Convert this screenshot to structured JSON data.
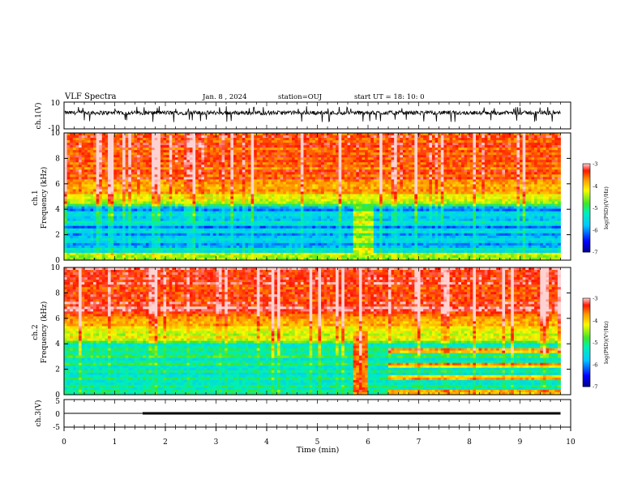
{
  "header": {
    "title": "VLF Spectra",
    "date": "Jan. 8 , 2024",
    "station": "station=OUJ",
    "start": "start  UT =  18: 10: 0"
  },
  "chart_data": [
    {
      "type": "line",
      "panel": "ch1-waveform",
      "ylabel": "ch.1(V)",
      "ylim": [
        -10,
        10
      ],
      "ytick_labels": [
        "10",
        "-10"
      ],
      "xlim": [
        0,
        10
      ],
      "description_values": {
        "baseline": 2,
        "amplitude": 1.5,
        "spikes_to": -3
      }
    },
    {
      "type": "heatmap",
      "panel": "ch1-spectrogram",
      "ylabel_top": "ch.1",
      "ylabel": "Frequency  (kHz)",
      "ylim": [
        0,
        10
      ],
      "ytick_labels": [
        "0",
        "2",
        "4",
        "6",
        "8",
        "10"
      ],
      "xlim": [
        0,
        10
      ],
      "data_end_min": 9.8,
      "colorbar": {
        "label": "log(PSD)(V²/Hz)",
        "range": [
          -7,
          -3
        ],
        "ticks": [
          "-3",
          "-4",
          "-5",
          "-6",
          "-7"
        ]
      }
    },
    {
      "type": "heatmap",
      "panel": "ch2-spectrogram",
      "ylabel_top": "ch.2",
      "ylabel": "Frequency  (kHz)",
      "ylim": [
        0,
        10
      ],
      "ytick_labels": [
        "0",
        "2",
        "4",
        "6",
        "8",
        "10"
      ],
      "xlim": [
        0,
        10
      ],
      "data_end_min": 9.8,
      "colorbar": {
        "label": "log(PSD)(V²/Hz)",
        "range": [
          -7,
          -3
        ],
        "ticks": [
          "-3",
          "-4",
          "-5",
          "-6",
          "-7"
        ]
      }
    },
    {
      "type": "line",
      "panel": "ch3-level",
      "ylabel": "ch.3(V)",
      "ylim": [
        -5,
        5
      ],
      "ytick_labels": [
        "5",
        "0",
        "-5"
      ],
      "xlim": [
        0,
        10
      ],
      "xlabel": "Time  (min)",
      "xtick_labels": [
        "0",
        "1",
        "2",
        "3",
        "4",
        "5",
        "6",
        "7",
        "8",
        "9",
        "10"
      ],
      "x": [
        0,
        1.55,
        1.55,
        9.8
      ],
      "y": [
        0,
        0,
        0,
        0
      ],
      "thick_from_min": 1.55
    }
  ]
}
